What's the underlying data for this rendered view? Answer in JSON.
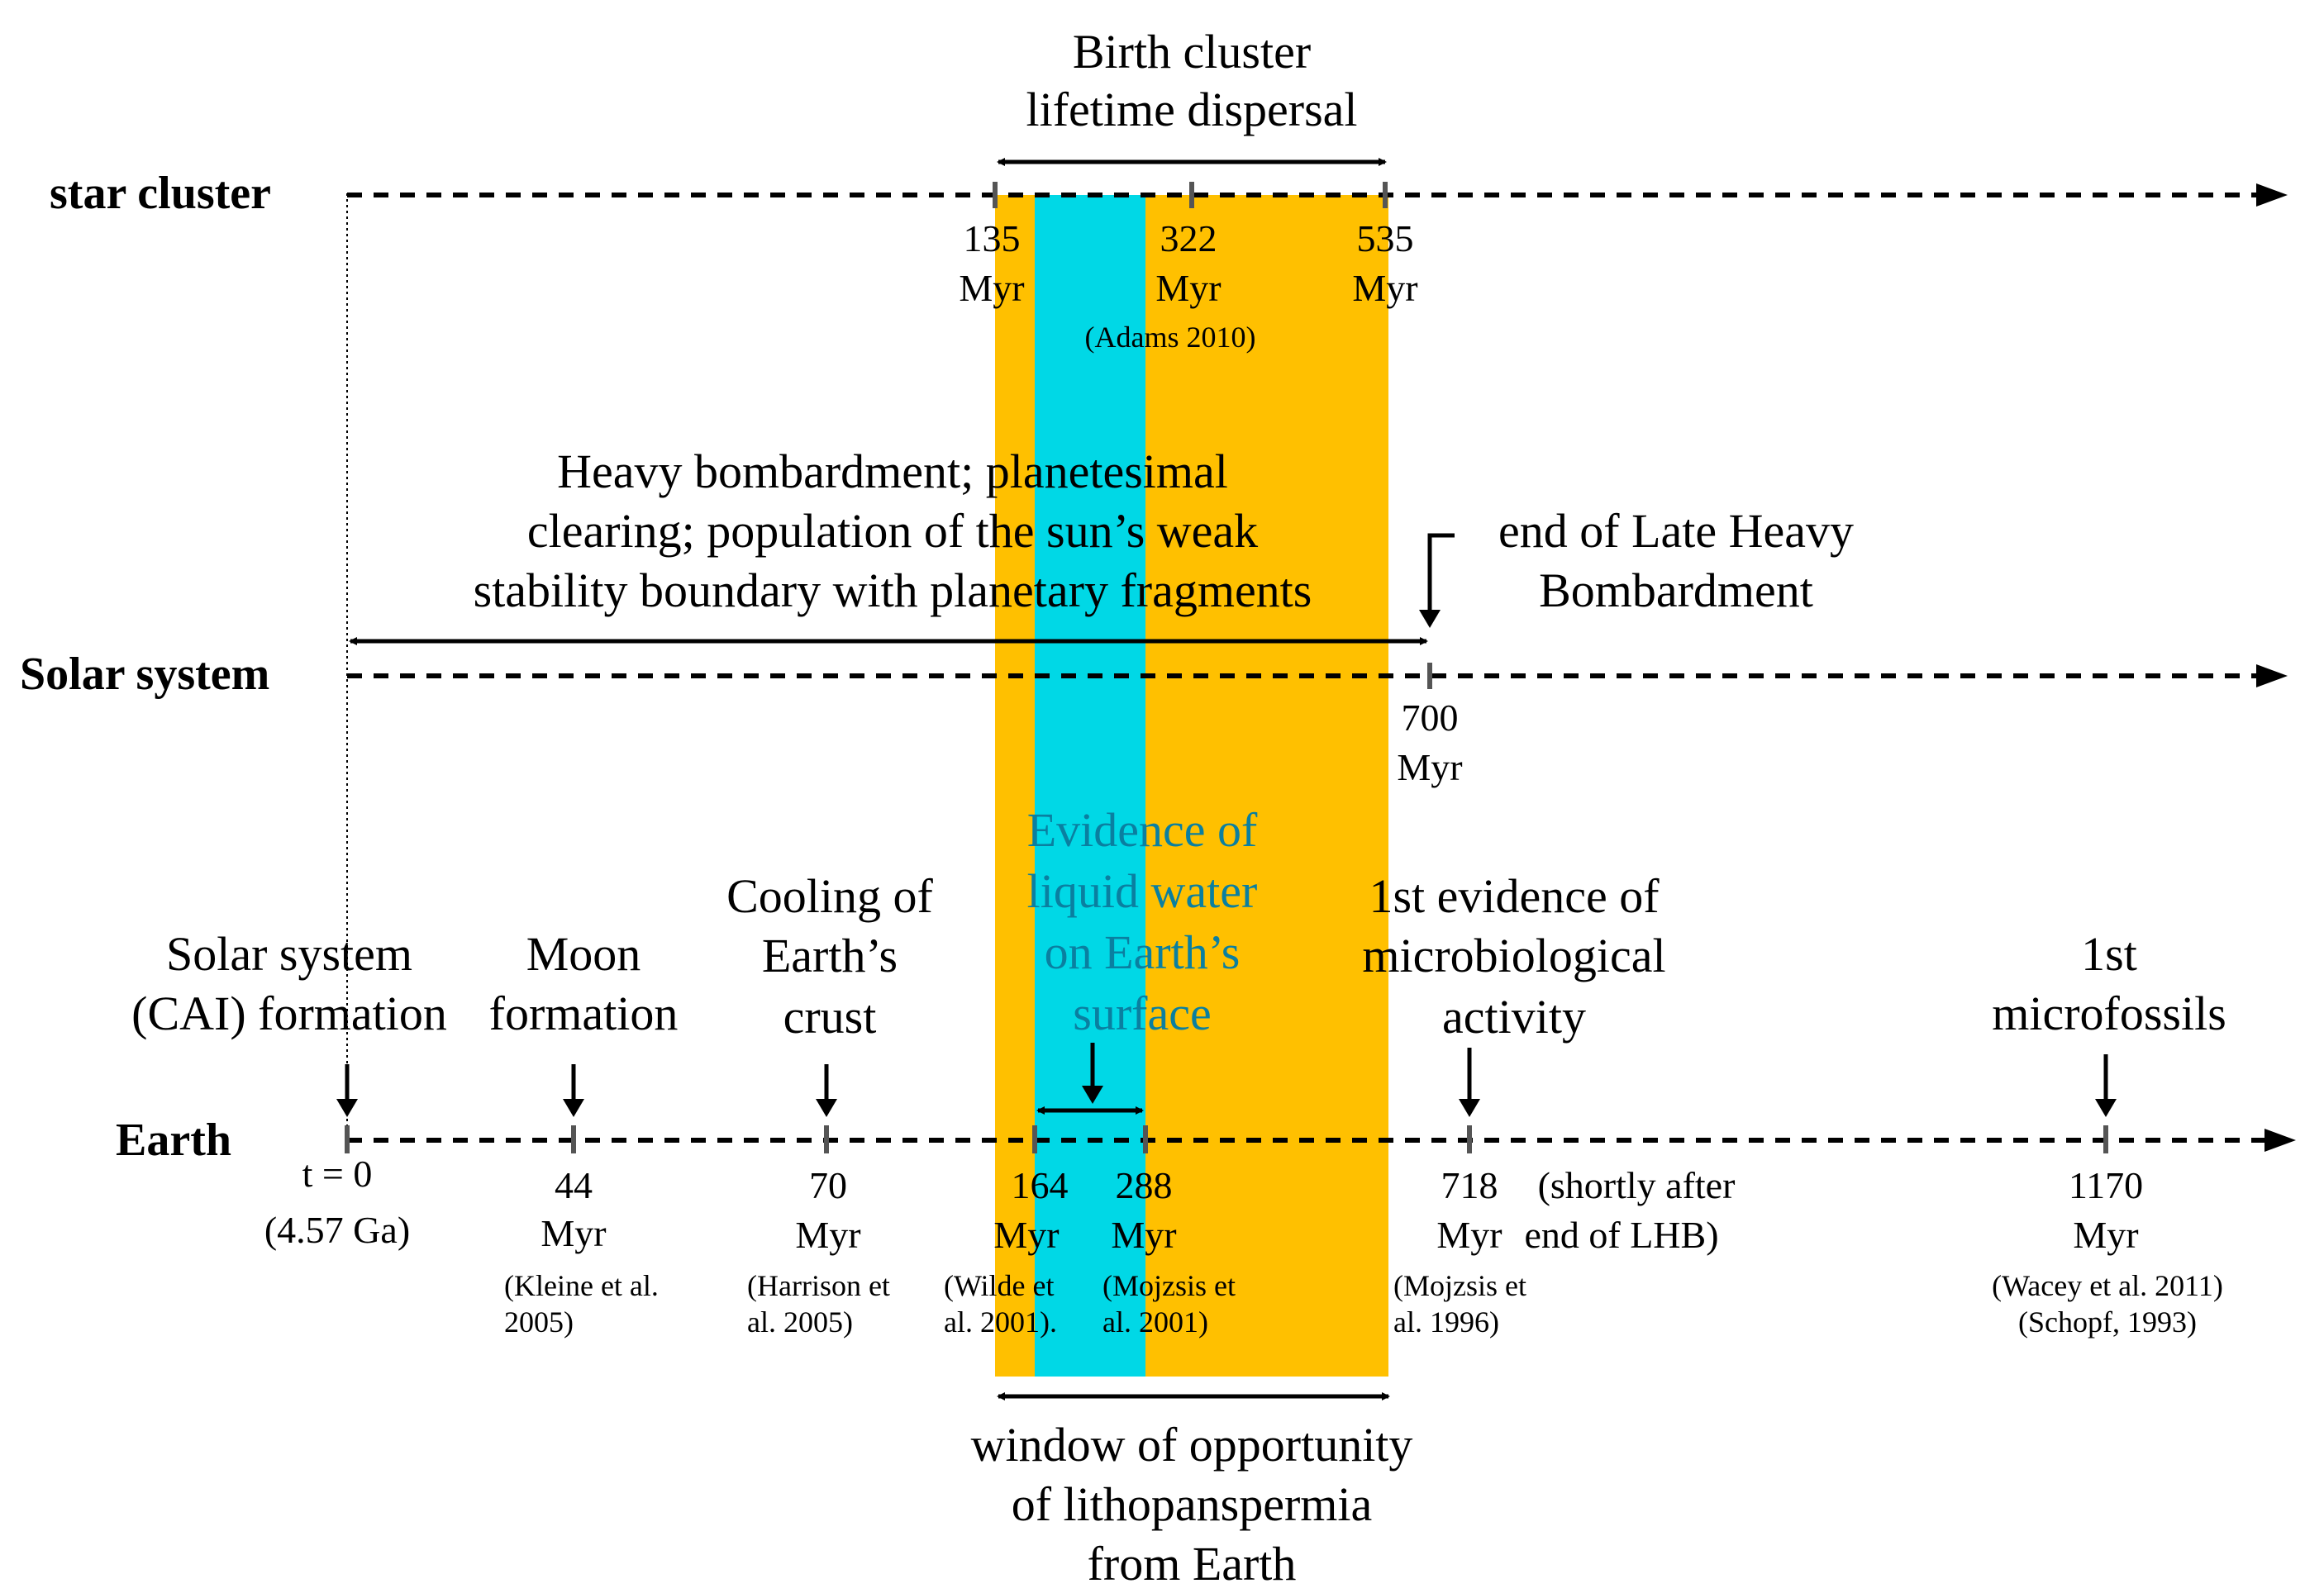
{
  "colors": {
    "orange_band": "#FFC000",
    "cyan_band": "#00D8E6",
    "tick_gray": "#555555",
    "text": "#000000",
    "water_label": "#0a7fa0"
  },
  "rows": {
    "star_cluster": "star cluster",
    "solar_system": "Solar system",
    "earth": "Earth"
  },
  "star_cluster": {
    "span_label": [
      "Birth cluster",
      "lifetime dispersal"
    ],
    "ticks": [
      {
        "value": "135",
        "unit": "Myr"
      },
      {
        "value": "322",
        "unit": "Myr"
      },
      {
        "value": "535",
        "unit": "Myr"
      }
    ],
    "reference": "(Adams 2010)"
  },
  "solar_system": {
    "span_label": [
      "Heavy bombardment; planetesimal",
      "clearing; population of the sun’s weak",
      "stability boundary with planetary fragments"
    ],
    "lhb_label": [
      "end of Late Heavy",
      "Bombardment"
    ],
    "tick": {
      "value": "700",
      "unit": "Myr"
    }
  },
  "earth": {
    "events": [
      {
        "label": [
          "Solar system",
          "(CAI) formation"
        ],
        "value": "t = 0",
        "unit": "(4.57 Ga)",
        "ref": []
      },
      {
        "label": [
          "Moon",
          "formation"
        ],
        "value": "44",
        "unit": "Myr",
        "ref": [
          "(Kleine et al.",
          "2005)"
        ]
      },
      {
        "label": [
          "Cooling of",
          "Earth’s",
          "crust"
        ],
        "value": "70",
        "unit": "Myr",
        "ref": [
          "(Harrison et",
          "al. 2005)"
        ]
      },
      {
        "label": [
          "Evidence of",
          "liquid water",
          "on Earth’s",
          "surface"
        ],
        "value": "164",
        "unit": "Myr",
        "ref": [
          "(Wilde et",
          "al. 2001)."
        ]
      },
      {
        "label": [],
        "value": "288",
        "unit": "Myr",
        "ref": [
          "(Mojzsis et",
          "al. 2001)"
        ]
      },
      {
        "label": [
          "1st evidence of",
          "microbiological",
          "activity"
        ],
        "value": "718",
        "unit": "Myr",
        "ref": [
          "(Mojzsis et",
          "al. 1996)"
        ]
      },
      {
        "label": [
          "1st",
          "microfossils"
        ],
        "value": "1170",
        "unit": "Myr",
        "ref": [
          "(Wacey et al. 2011)",
          "(Schopf, 1993)"
        ]
      }
    ],
    "note": [
      "(shortly after",
      "end of LHB)"
    ]
  },
  "window_label": [
    "window of opportunity",
    "of lithopanspermia",
    "from Earth"
  ]
}
